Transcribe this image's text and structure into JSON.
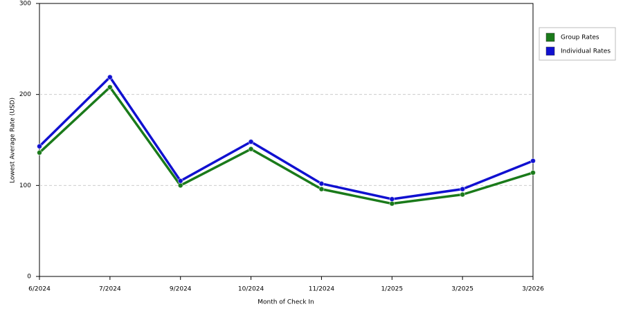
{
  "chart_data": {
    "type": "line",
    "x_label": "Month of Check In",
    "y_label": "Lowest Average Rate (USD)",
    "categories": [
      "6/2024",
      "7/2024",
      "9/2024",
      "10/2024",
      "11/2024",
      "1/2025",
      "3/2025",
      "3/2026"
    ],
    "series": [
      {
        "name": "Group Rates",
        "color": "#1a7a1a",
        "values": [
          136,
          208,
          100,
          140,
          96,
          80,
          90,
          114
        ]
      },
      {
        "name": "Individual Rates",
        "color": "#1010d0",
        "values": [
          143,
          219,
          105,
          148,
          102,
          85,
          96,
          127
        ]
      }
    ],
    "ylim": [
      0,
      300
    ],
    "yticks": [
      0,
      100,
      200,
      300
    ],
    "grid": true,
    "legend": "right"
  }
}
